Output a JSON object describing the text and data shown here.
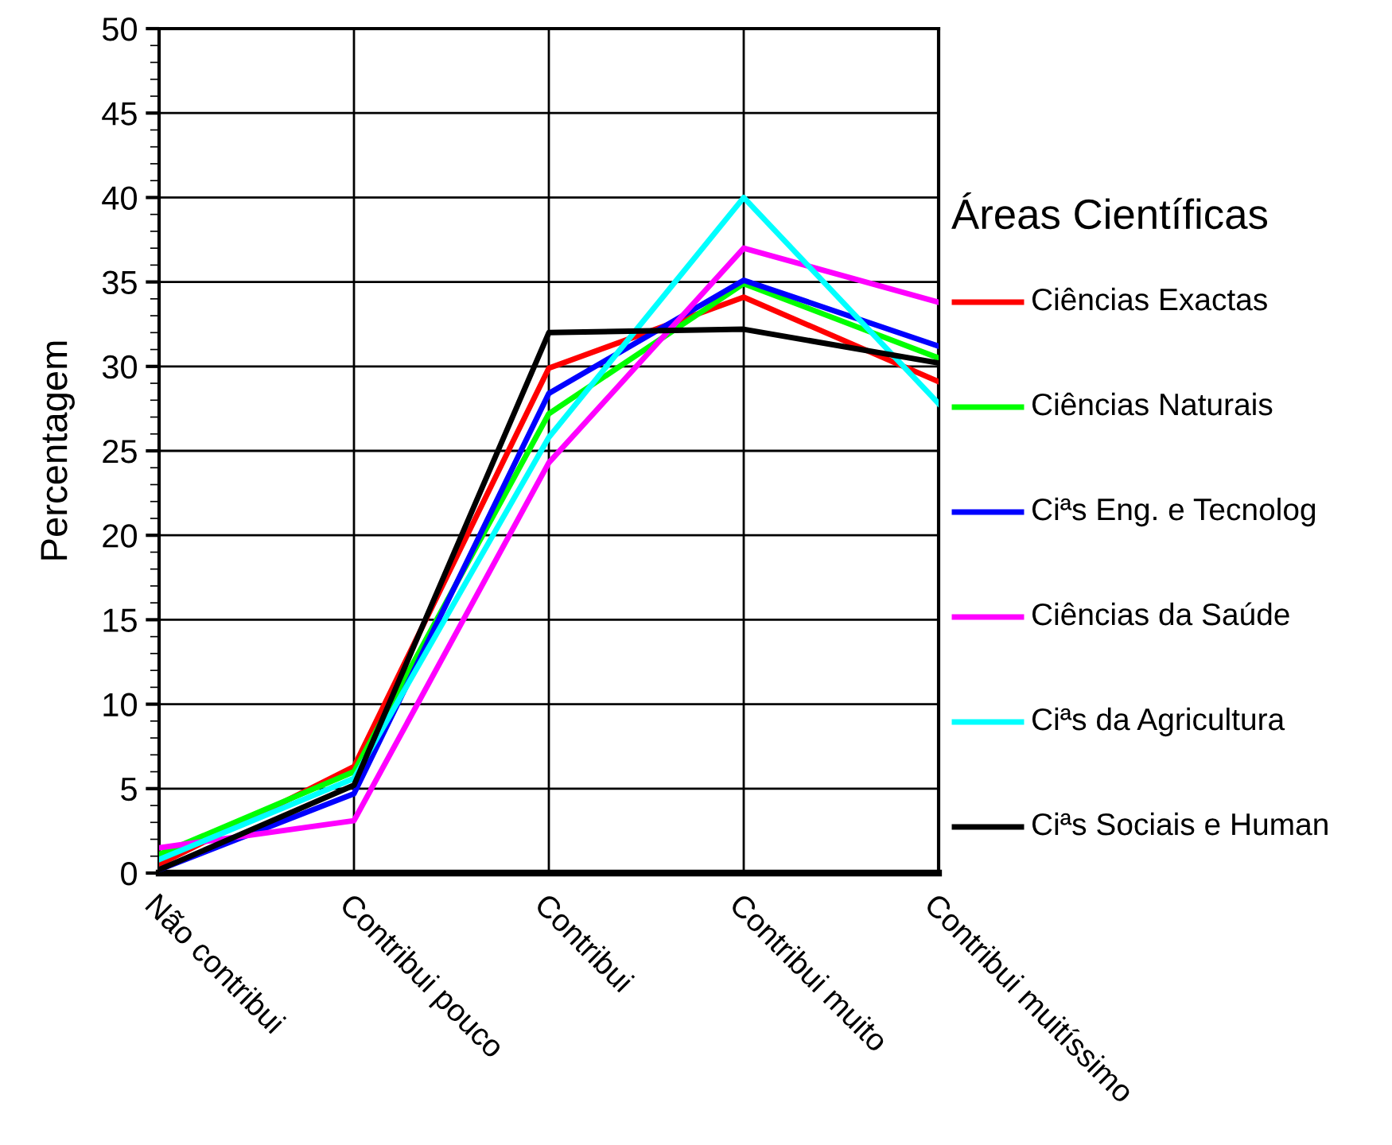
{
  "chart_data": {
    "type": "line",
    "ylabel": "Percentagem",
    "legend_title": "Áreas Científicas",
    "legend": "right",
    "grid": true,
    "marker": "none",
    "line_style": "solid",
    "categories": [
      "Não contribui",
      "Contribui pouco",
      "Contribui",
      "Contribui muito",
      "Contribui muitíssimo"
    ],
    "ylim": [
      0,
      50
    ],
    "yticks": [
      0,
      5,
      10,
      15,
      20,
      25,
      30,
      35,
      40,
      45,
      50
    ],
    "series": [
      {
        "name": "Ciências Exactas",
        "color": "#ff0000",
        "values": [
          0.5,
          6.3,
          29.9,
          34.1,
          29.1
        ]
      },
      {
        "name": "Ciências Naturais",
        "color": "#00ff00",
        "values": [
          1.1,
          6.0,
          27.2,
          34.9,
          30.5
        ]
      },
      {
        "name": "Ciªs Eng. e Tecnolog",
        "color": "#0000ff",
        "values": [
          0.2,
          4.7,
          28.4,
          35.1,
          31.2
        ]
      },
      {
        "name": "Ciências da Saúde",
        "color": "#ff00ff",
        "values": [
          1.5,
          3.1,
          24.3,
          37.0,
          33.8
        ]
      },
      {
        "name": "Ciªs da Agricultura",
        "color": "#00ffff",
        "values": [
          0.8,
          5.6,
          25.8,
          40.0,
          27.8
        ]
      },
      {
        "name": "Ciªs Sociais e Human",
        "color": "#000000",
        "values": [
          0.2,
          5.2,
          32.0,
          32.2,
          30.2
        ]
      }
    ]
  }
}
